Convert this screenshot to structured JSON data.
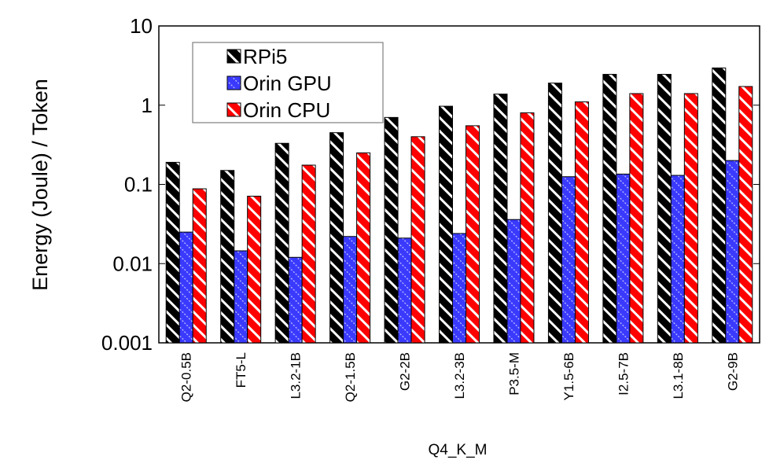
{
  "chart_data": {
    "type": "bar",
    "scale": "log",
    "title": "",
    "xlabel": "Q4_K_M",
    "ylabel": "Energy (Joule) / Token",
    "ylim": [
      0.001,
      10
    ],
    "yticks": [
      {
        "value": 0.001,
        "label": "0.001"
      },
      {
        "value": 0.01,
        "label": "0.01"
      },
      {
        "value": 0.1,
        "label": "0.1"
      },
      {
        "value": 1,
        "label": "1"
      },
      {
        "value": 10,
        "label": "10"
      }
    ],
    "categories": [
      "Q2-0.5B",
      "FT5-L",
      "L3.2-1B",
      "Q2-1.5B",
      "G2-2B",
      "L3.2-3B",
      "P3.5-M",
      "Y1.5-6B",
      "I2.5-7B",
      "L3.1-8B",
      "G2-9B"
    ],
    "series": [
      {
        "name": "RPi5",
        "color": "#000000",
        "pattern": "hatch-black",
        "values": [
          0.19,
          0.15,
          0.33,
          0.45,
          0.7,
          0.97,
          1.38,
          1.9,
          2.45,
          2.45,
          2.95
        ]
      },
      {
        "name": "Orin GPU",
        "color": "#3333ff",
        "pattern": "dots-blue",
        "values": [
          0.025,
          0.0145,
          0.012,
          0.022,
          0.021,
          0.024,
          0.036,
          0.125,
          0.135,
          0.13,
          0.2
        ]
      },
      {
        "name": "Orin CPU",
        "color": "#ff0000",
        "pattern": "hatch-red",
        "values": [
          0.088,
          0.071,
          0.175,
          0.25,
          0.4,
          0.55,
          0.8,
          1.1,
          1.4,
          1.4,
          1.72
        ]
      }
    ],
    "legend": {
      "position": "top-left",
      "entries": [
        "RPi5",
        "Orin GPU",
        "Orin CPU"
      ]
    },
    "grid": false
  }
}
